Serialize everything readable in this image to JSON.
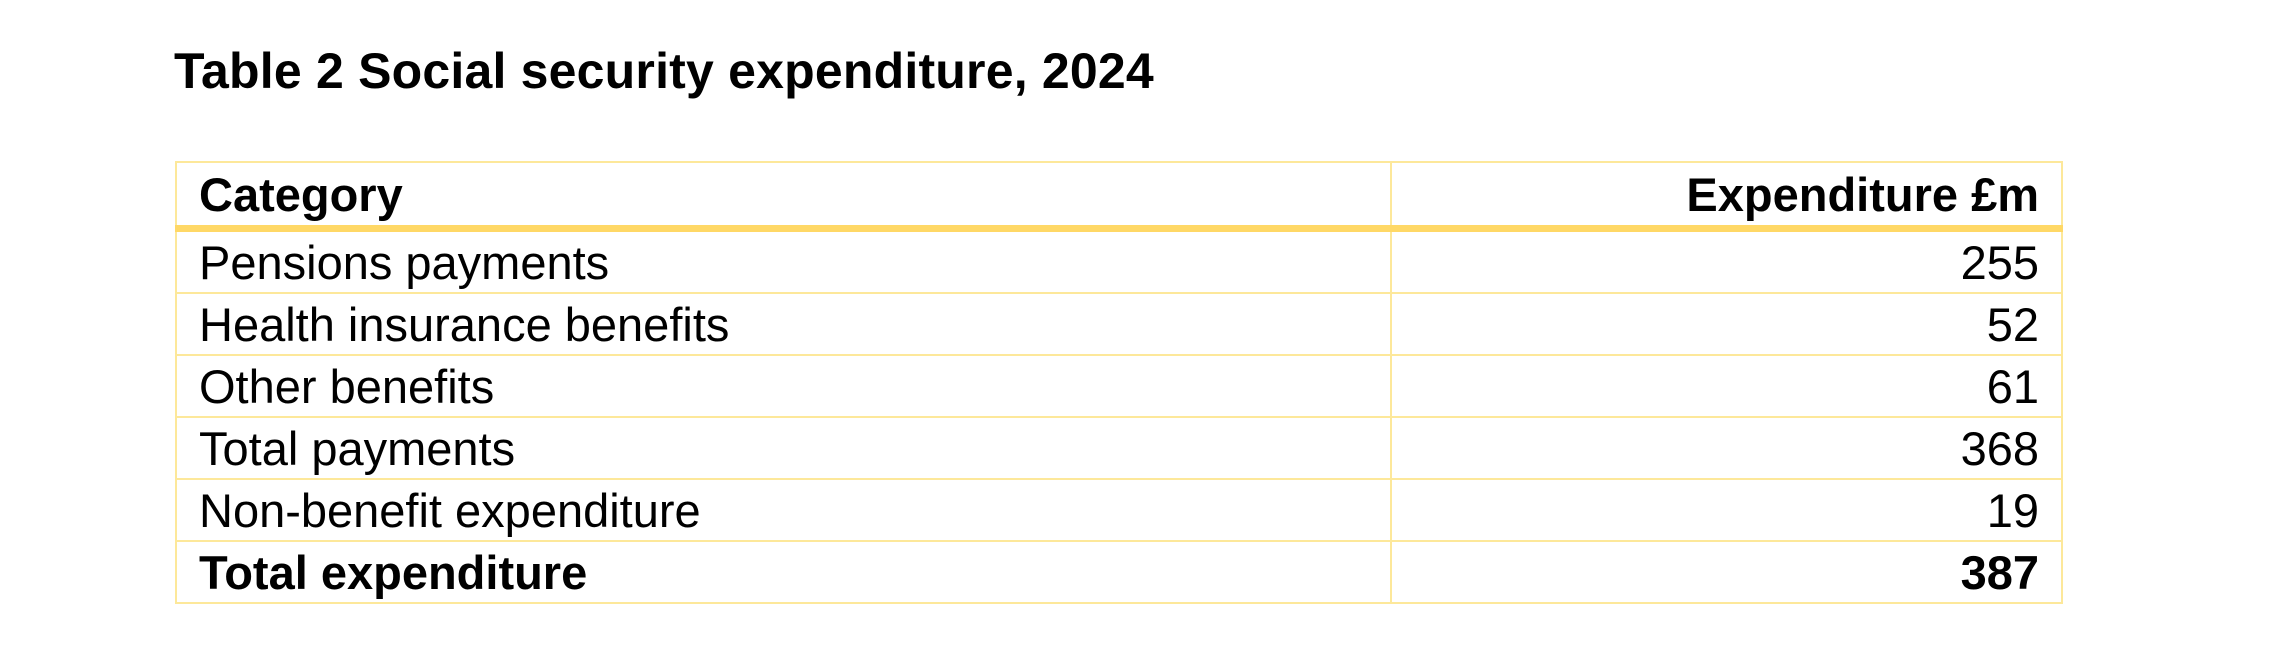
{
  "title": "Table 2  Social security expenditure, 2024",
  "table": {
    "headers": [
      "Category",
      "Expenditure £m"
    ],
    "rows": [
      {
        "category": "Pensions payments",
        "value": "255"
      },
      {
        "category": "Health insurance benefits",
        "value": "52"
      },
      {
        "category": "Other benefits",
        "value": "61"
      },
      {
        "category": "Total payments",
        "value": "368"
      },
      {
        "category": "Non-benefit expenditure",
        "value": "19"
      },
      {
        "category": "Total expenditure",
        "value": "387"
      }
    ]
  },
  "colors": {
    "border": "#fde89a",
    "header_rule": "#ffd866",
    "text": "#000000"
  }
}
